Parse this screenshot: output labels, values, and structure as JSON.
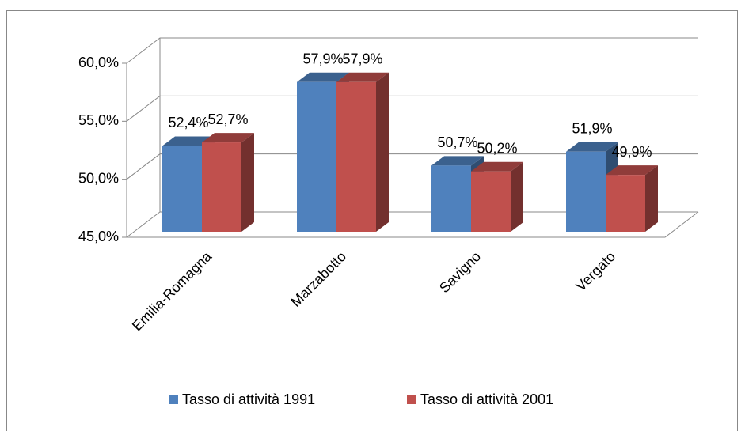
{
  "chart_data": {
    "type": "bar3d",
    "categories": [
      "Emilia-Romagna",
      "Marzabotto",
      "Savigno",
      "Vergato"
    ],
    "series": [
      {
        "name": "Tasso di attività 1991",
        "color": "#4f81bd",
        "values": [
          52.4,
          57.9,
          50.7,
          51.9
        ],
        "value_labels": [
          "52,4%",
          "57,9%",
          "50,7%",
          "51,9%"
        ]
      },
      {
        "name": "Tasso di attività 2001",
        "color": "#c0504d",
        "values": [
          52.7,
          57.9,
          50.2,
          49.9
        ],
        "value_labels": [
          "52,7%",
          "57,9%",
          "50,2%",
          "49,9%"
        ]
      }
    ],
    "ylim": [
      45,
      60
    ],
    "yticks": [
      {
        "value": 45,
        "label": "45,0%"
      },
      {
        "value": 50,
        "label": "50,0%"
      },
      {
        "value": 55,
        "label": "55,0%"
      },
      {
        "value": 60,
        "label": "60,0%"
      }
    ],
    "grid": true,
    "legend": "bottom"
  }
}
